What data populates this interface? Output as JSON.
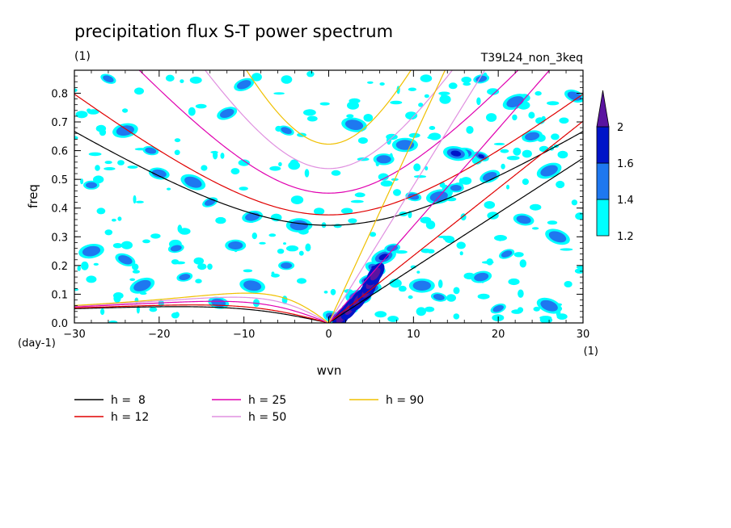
{
  "chart_data": {
    "type": "heatmap",
    "title": "precipitation flux S-T power spectrum",
    "subtitle_left": "(1)",
    "subtitle_right": "T39L24_non_3keq",
    "xlabel": "wvn",
    "ylabel": "freq",
    "x_unit": "(1)",
    "y_unit": "(day-1)",
    "xlim": [
      -30,
      30
    ],
    "ylim": [
      0,
      0.88
    ],
    "x_ticks": [
      -30,
      -20,
      -10,
      0,
      10,
      20,
      30
    ],
    "y_ticks": [
      "0.0",
      "0.1",
      "0.2",
      "0.3",
      "0.4",
      "0.5",
      "0.6",
      "0.7",
      "0.8"
    ],
    "colorbar": {
      "levels": [
        1.2,
        1.4,
        1.6,
        2
      ],
      "labels": [
        "1.2",
        "1.4",
        "1.6",
        "2"
      ],
      "colors": [
        "#00ffff",
        "#1e78f0",
        "#0014c8",
        "#5a14a0"
      ]
    },
    "series": [
      {
        "name": "h =  8",
        "h": 8,
        "color": "#000000"
      },
      {
        "name": "h = 12",
        "h": 12,
        "color": "#e00000"
      },
      {
        "name": "h = 25",
        "h": 25,
        "color": "#e000b0"
      },
      {
        "name": "h = 50",
        "h": 50,
        "color": "#e090e0"
      },
      {
        "name": "h = 90",
        "h": 90,
        "color": "#f0c000"
      }
    ],
    "blobs": [
      {
        "x": 4.5,
        "y": 0.15,
        "level": 4
      },
      {
        "x": 5.0,
        "y": 0.12,
        "level": 4
      },
      {
        "x": 3.5,
        "y": 0.09,
        "level": 4
      },
      {
        "x": 2.5,
        "y": 0.05,
        "level": 4
      },
      {
        "x": 5.5,
        "y": 0.19,
        "level": 3
      },
      {
        "x": 6.5,
        "y": 0.23,
        "level": 3
      },
      {
        "x": 7.5,
        "y": 0.26,
        "level": 2
      },
      {
        "x": 16,
        "y": 0.59,
        "level": 3
      },
      {
        "x": 15,
        "y": 0.59,
        "level": 3
      },
      {
        "x": 18,
        "y": 0.58,
        "level": 3
      },
      {
        "x": 19,
        "y": 0.51,
        "level": 2
      },
      {
        "x": 13,
        "y": 0.44,
        "level": 2
      },
      {
        "x": 15,
        "y": 0.47,
        "level": 2
      },
      {
        "x": 23,
        "y": 0.36,
        "level": 2
      },
      {
        "x": 27,
        "y": 0.3,
        "level": 2
      },
      {
        "x": 21,
        "y": 0.24,
        "level": 2
      },
      {
        "x": 18,
        "y": 0.16,
        "level": 2
      },
      {
        "x": 11,
        "y": 0.13,
        "level": 2
      },
      {
        "x": 13,
        "y": 0.09,
        "level": 2
      },
      {
        "x": 29,
        "y": 0.79,
        "level": 2
      },
      {
        "x": 22,
        "y": 0.77,
        "level": 2
      },
      {
        "x": 18,
        "y": 0.85,
        "level": 2
      },
      {
        "x": 6.5,
        "y": 0.57,
        "level": 2
      },
      {
        "x": 3,
        "y": 0.69,
        "level": 2
      },
      {
        "x": -5,
        "y": 0.67,
        "level": 2
      },
      {
        "x": -12,
        "y": 0.73,
        "level": 2
      },
      {
        "x": -24,
        "y": 0.67,
        "level": 2
      },
      {
        "x": -28,
        "y": 0.48,
        "level": 2
      },
      {
        "x": -20,
        "y": 0.52,
        "level": 2
      },
      {
        "x": -16,
        "y": 0.49,
        "level": 2
      },
      {
        "x": -14,
        "y": 0.42,
        "level": 2
      },
      {
        "x": -9,
        "y": 0.37,
        "level": 2
      },
      {
        "x": -3.5,
        "y": 0.34,
        "level": 2
      },
      {
        "x": -21,
        "y": 0.6,
        "level": 2
      },
      {
        "x": -24,
        "y": 0.22,
        "level": 2
      },
      {
        "x": -22,
        "y": 0.13,
        "level": 2
      },
      {
        "x": -17,
        "y": 0.16,
        "level": 2
      },
      {
        "x": -11,
        "y": 0.27,
        "level": 2
      },
      {
        "x": -9,
        "y": 0.13,
        "level": 2
      },
      {
        "x": -26,
        "y": 0.85,
        "level": 2
      },
      {
        "x": -10,
        "y": 0.83,
        "level": 2
      },
      {
        "x": -28,
        "y": 0.25,
        "level": 2
      },
      {
        "x": -5,
        "y": 0.2,
        "level": 2
      },
      {
        "x": -13,
        "y": 0.07,
        "level": 2
      },
      {
        "x": 26,
        "y": 0.06,
        "level": 2
      },
      {
        "x": 20,
        "y": 0.05,
        "level": 2
      },
      {
        "x": 24,
        "y": 0.65,
        "level": 2
      },
      {
        "x": 9,
        "y": 0.62,
        "level": 2
      },
      {
        "x": 10,
        "y": 0.44,
        "level": 2
      },
      {
        "x": 0.5,
        "y": 0.02,
        "level": 3
      },
      {
        "x": 26,
        "y": 0.53,
        "level": 2
      },
      {
        "x": -18,
        "y": 0.26,
        "level": 2
      }
    ]
  }
}
